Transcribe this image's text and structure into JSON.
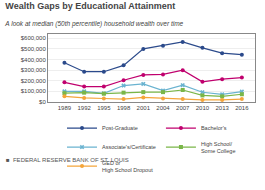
{
  "chart_data": {
    "type": "line",
    "title": "Wealth Gaps by Educational Attainment",
    "subtitle": "A look at median (50th percentile) household wealth over time",
    "annotations": [
      "■  FEDERAL RESERVE BANK OF ST. LOUIS"
    ],
    "x": [
      1989,
      1992,
      1995,
      1998,
      2001,
      2004,
      2007,
      2010,
      2013,
      2016
    ],
    "series": [
      {
        "name": "Post-Graduate",
        "color": "#2b4a8b",
        "marker": "circle",
        "line_style": "solid",
        "values": [
          370000,
          285000,
          285000,
          345000,
          500000,
          530000,
          565000,
          510000,
          460000,
          445000
        ]
      },
      {
        "name": "Bachelor's",
        "color": "#c0006e",
        "marker": "circle",
        "line_style": "solid",
        "values": [
          185000,
          145000,
          145000,
          205000,
          255000,
          260000,
          300000,
          190000,
          215000,
          230000
        ]
      },
      {
        "name": "Associate's/Certificate",
        "color": "#6ab3d0",
        "marker": "x",
        "line_style": "solid",
        "values": [
          100000,
          100000,
          82000,
          155000,
          170000,
          108000,
          158000,
          92000,
          72000,
          98000
        ]
      },
      {
        "name": "High School/\nSome College",
        "color": "#7ab648",
        "marker": "square",
        "line_style": "solid",
        "values": [
          83000,
          88000,
          78000,
          88000,
          93000,
          93000,
          113000,
          62000,
          53000,
          73000
        ]
      },
      {
        "name": "GED or\nHigh School Dropout",
        "color": "#f4a53a",
        "marker": "circle",
        "line_style": "solid",
        "values": [
          53000,
          38000,
          33000,
          28000,
          43000,
          33000,
          28000,
          20000,
          20000,
          28000
        ]
      }
    ],
    "xlim": [
      1986.5,
      2018
    ],
    "xticks": [
      1989,
      1992,
      1995,
      1998,
      2001,
      2004,
      2007,
      2010,
      2013,
      2016
    ],
    "ylim": [
      0,
      640000
    ],
    "yticks": [
      {
        "value": 0,
        "label": "$0"
      },
      {
        "value": 100000,
        "label": "$100,000"
      },
      {
        "value": 200000,
        "label": "$200,000"
      },
      {
        "value": 300000,
        "label": "$300,000"
      },
      {
        "value": 400000,
        "label": "$400,000"
      },
      {
        "value": 500000,
        "label": "$500,000"
      },
      {
        "value": 600000,
        "label": "$600,000"
      }
    ],
    "grid": "y",
    "legend": "bottom"
  }
}
